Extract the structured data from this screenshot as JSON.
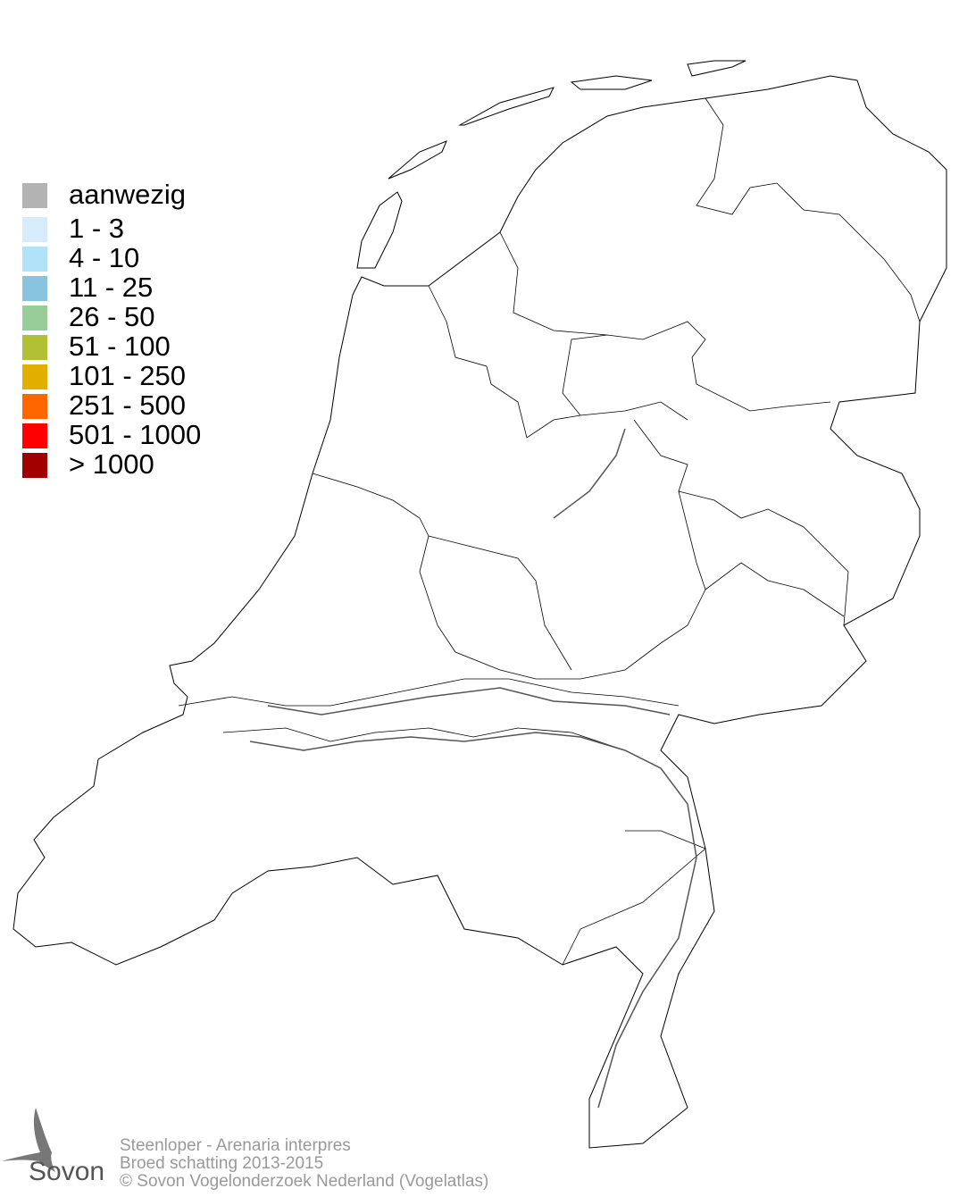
{
  "legend": {
    "items": [
      {
        "label": "aanwezig",
        "color": "#b3b3b3"
      },
      {
        "label": "1 - 3",
        "color": "#d6ecfa"
      },
      {
        "label": "4 - 10",
        "color": "#b1e2fa"
      },
      {
        "label": "11 - 25",
        "color": "#88c3e0"
      },
      {
        "label": "26 - 50",
        "color": "#98cc98"
      },
      {
        "label": "51 - 100",
        "color": "#b0c234"
      },
      {
        "label": "101 - 250",
        "color": "#e2ae00"
      },
      {
        "label": "251 - 500",
        "color": "#ff6600"
      },
      {
        "label": "501 - 1000",
        "color": "#ff0000"
      },
      {
        "label": "> 1000",
        "color": "#a00000"
      }
    ]
  },
  "footer": {
    "species": "Steenloper - Arenaria interpres",
    "subtitle": "Broed schatting 2013-2015",
    "copyright": "© Sovon Vogelonderzoek Nederland (Vogelatlas)"
  },
  "logo": {
    "text": "Sovon"
  }
}
